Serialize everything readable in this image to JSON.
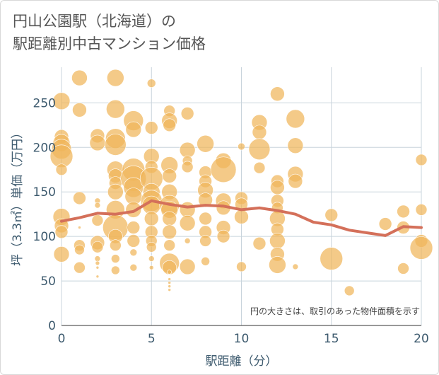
{
  "title_line1": "円山公園駅（北海道）の",
  "title_line2": "駅距離別中古マンション価格",
  "annotation": "円の大きさは、取引のあった物件面積を示す",
  "colors": {
    "bubble": "#f0b55a",
    "line": "#d4705a",
    "grid": "#c8d4dc",
    "axis_text": "#3d5a6e",
    "plot_bg": "#ffffff"
  },
  "chart_data": {
    "type": "scatter",
    "title": "円山公園駅（北海道）の駅距離別中古マンション価格",
    "xlabel": "駅距離（分）",
    "ylabel": "坪（3.3㎡）単価（万円）",
    "xlim": [
      0,
      20
    ],
    "ylim": [
      0,
      290
    ],
    "xticks": [
      0,
      5,
      10,
      15,
      20
    ],
    "yticks": [
      0,
      50,
      100,
      150,
      200,
      250
    ],
    "grid": true,
    "bubbles": [
      {
        "x": 0,
        "y": 252,
        "s": 12
      },
      {
        "x": 0,
        "y": 212,
        "s": 10
      },
      {
        "x": 0,
        "y": 205,
        "s": 12
      },
      {
        "x": 0,
        "y": 198,
        "s": 14
      },
      {
        "x": 0,
        "y": 190,
        "s": 16
      },
      {
        "x": 0,
        "y": 175,
        "s": 8
      },
      {
        "x": 0,
        "y": 122,
        "s": 12
      },
      {
        "x": 0,
        "y": 112,
        "s": 10
      },
      {
        "x": 0,
        "y": 105,
        "s": 9
      },
      {
        "x": 0,
        "y": 80,
        "s": 11
      },
      {
        "x": 1,
        "y": 278,
        "s": 11
      },
      {
        "x": 1,
        "y": 242,
        "s": 10
      },
      {
        "x": 1,
        "y": 143,
        "s": 9
      },
      {
        "x": 1,
        "y": 110,
        "s": 2
      },
      {
        "x": 1,
        "y": 90,
        "s": 8
      },
      {
        "x": 1,
        "y": 85,
        "s": 7
      },
      {
        "x": 1,
        "y": 65,
        "s": 8
      },
      {
        "x": 2,
        "y": 213,
        "s": 10
      },
      {
        "x": 2,
        "y": 205,
        "s": 11
      },
      {
        "x": 2,
        "y": 140,
        "s": 4
      },
      {
        "x": 2,
        "y": 135,
        "s": 4
      },
      {
        "x": 2,
        "y": 118,
        "s": 8
      },
      {
        "x": 2,
        "y": 93,
        "s": 10
      },
      {
        "x": 2,
        "y": 88,
        "s": 8
      },
      {
        "x": 2,
        "y": 75,
        "s": 4
      },
      {
        "x": 2,
        "y": 70,
        "s": 3
      },
      {
        "x": 2,
        "y": 65,
        "s": 2
      },
      {
        "x": 2,
        "y": 55,
        "s": 2
      },
      {
        "x": 3,
        "y": 278,
        "s": 12
      },
      {
        "x": 3,
        "y": 243,
        "s": 13
      },
      {
        "x": 3,
        "y": 210,
        "s": 14
      },
      {
        "x": 3,
        "y": 203,
        "s": 15
      },
      {
        "x": 3,
        "y": 175,
        "s": 12
      },
      {
        "x": 3,
        "y": 168,
        "s": 10
      },
      {
        "x": 3,
        "y": 160,
        "s": 9
      },
      {
        "x": 3,
        "y": 150,
        "s": 11
      },
      {
        "x": 3,
        "y": 130,
        "s": 13
      },
      {
        "x": 3,
        "y": 110,
        "s": 18
      },
      {
        "x": 3,
        "y": 100,
        "s": 10
      },
      {
        "x": 3,
        "y": 90,
        "s": 8
      },
      {
        "x": 3,
        "y": 75,
        "s": 6
      },
      {
        "x": 3,
        "y": 62,
        "s": 6
      },
      {
        "x": 4,
        "y": 230,
        "s": 14
      },
      {
        "x": 4,
        "y": 220,
        "s": 11
      },
      {
        "x": 4,
        "y": 175,
        "s": 16
      },
      {
        "x": 4,
        "y": 165,
        "s": 18
      },
      {
        "x": 4,
        "y": 155,
        "s": 14
      },
      {
        "x": 4,
        "y": 145,
        "s": 12
      },
      {
        "x": 4,
        "y": 130,
        "s": 11
      },
      {
        "x": 4,
        "y": 110,
        "s": 9
      },
      {
        "x": 4,
        "y": 95,
        "s": 9
      },
      {
        "x": 4,
        "y": 82,
        "s": 5
      },
      {
        "x": 4,
        "y": 65,
        "s": 5
      },
      {
        "x": 5,
        "y": 272,
        "s": 6
      },
      {
        "x": 5,
        "y": 222,
        "s": 9
      },
      {
        "x": 5,
        "y": 190,
        "s": 11
      },
      {
        "x": 5,
        "y": 178,
        "s": 9
      },
      {
        "x": 5,
        "y": 165,
        "s": 16
      },
      {
        "x": 5,
        "y": 150,
        "s": 12
      },
      {
        "x": 5,
        "y": 140,
        "s": 15
      },
      {
        "x": 5,
        "y": 135,
        "s": 13
      },
      {
        "x": 5,
        "y": 120,
        "s": 10
      },
      {
        "x": 5,
        "y": 105,
        "s": 9
      },
      {
        "x": 5,
        "y": 95,
        "s": 8
      },
      {
        "x": 5,
        "y": 88,
        "s": 7
      },
      {
        "x": 5,
        "y": 75,
        "s": 4
      },
      {
        "x": 5,
        "y": 65,
        "s": 3
      },
      {
        "x": 6,
        "y": 241,
        "s": 8
      },
      {
        "x": 6,
        "y": 230,
        "s": 11
      },
      {
        "x": 6,
        "y": 225,
        "s": 9
      },
      {
        "x": 6,
        "y": 180,
        "s": 12
      },
      {
        "x": 6,
        "y": 168,
        "s": 10
      },
      {
        "x": 6,
        "y": 150,
        "s": 11
      },
      {
        "x": 6,
        "y": 135,
        "s": 14
      },
      {
        "x": 6,
        "y": 130,
        "s": 12
      },
      {
        "x": 6,
        "y": 120,
        "s": 10
      },
      {
        "x": 6,
        "y": 105,
        "s": 10
      },
      {
        "x": 6,
        "y": 90,
        "s": 8
      },
      {
        "x": 6,
        "y": 70,
        "s": 14
      },
      {
        "x": 6,
        "y": 65,
        "s": 10
      },
      {
        "x": 6,
        "y": 60,
        "s": 3
      },
      {
        "x": 6,
        "y": 52,
        "s": 2
      },
      {
        "x": 6,
        "y": 48,
        "s": 2
      },
      {
        "x": 6,
        "y": 44,
        "s": 2
      },
      {
        "x": 6,
        "y": 40,
        "s": 2
      },
      {
        "x": 7,
        "y": 238,
        "s": 9
      },
      {
        "x": 7,
        "y": 197,
        "s": 11
      },
      {
        "x": 7,
        "y": 185,
        "s": 7
      },
      {
        "x": 7,
        "y": 178,
        "s": 8
      },
      {
        "x": 7,
        "y": 130,
        "s": 11
      },
      {
        "x": 7,
        "y": 115,
        "s": 11
      },
      {
        "x": 7,
        "y": 95,
        "s": 4
      },
      {
        "x": 7,
        "y": 66,
        "s": 11
      },
      {
        "x": 8,
        "y": 204,
        "s": 12
      },
      {
        "x": 8,
        "y": 172,
        "s": 9
      },
      {
        "x": 8,
        "y": 162,
        "s": 9
      },
      {
        "x": 8,
        "y": 152,
        "s": 11
      },
      {
        "x": 8,
        "y": 141,
        "s": 10
      },
      {
        "x": 8,
        "y": 120,
        "s": 9
      },
      {
        "x": 8,
        "y": 105,
        "s": 9
      },
      {
        "x": 8,
        "y": 95,
        "s": 8
      },
      {
        "x": 8,
        "y": 72,
        "s": 6
      },
      {
        "x": 9,
        "y": 185,
        "s": 11
      },
      {
        "x": 9,
        "y": 175,
        "s": 18
      },
      {
        "x": 9,
        "y": 140,
        "s": 11
      },
      {
        "x": 9,
        "y": 132,
        "s": 10
      },
      {
        "x": 9,
        "y": 110,
        "s": 10
      },
      {
        "x": 9,
        "y": 100,
        "s": 9
      },
      {
        "x": 10,
        "y": 201,
        "s": 5
      },
      {
        "x": 10,
        "y": 143,
        "s": 9
      },
      {
        "x": 10,
        "y": 136,
        "s": 9
      },
      {
        "x": 10,
        "y": 122,
        "s": 10
      },
      {
        "x": 10,
        "y": 66,
        "s": 7
      },
      {
        "x": 11,
        "y": 228,
        "s": 11
      },
      {
        "x": 11,
        "y": 217,
        "s": 10
      },
      {
        "x": 11,
        "y": 198,
        "s": 15
      },
      {
        "x": 11,
        "y": 177,
        "s": 8
      },
      {
        "x": 11,
        "y": 92,
        "s": 9
      },
      {
        "x": 12,
        "y": 260,
        "s": 10
      },
      {
        "x": 12,
        "y": 162,
        "s": 9
      },
      {
        "x": 12,
        "y": 155,
        "s": 10
      },
      {
        "x": 12,
        "y": 140,
        "s": 9
      },
      {
        "x": 12,
        "y": 132,
        "s": 8
      },
      {
        "x": 12,
        "y": 120,
        "s": 11
      },
      {
        "x": 12,
        "y": 108,
        "s": 9
      },
      {
        "x": 12,
        "y": 95,
        "s": 11
      },
      {
        "x": 12,
        "y": 80,
        "s": 10
      },
      {
        "x": 12,
        "y": 68,
        "s": 12
      },
      {
        "x": 13,
        "y": 232,
        "s": 13
      },
      {
        "x": 13,
        "y": 202,
        "s": 11
      },
      {
        "x": 13,
        "y": 170,
        "s": 11
      },
      {
        "x": 13,
        "y": 162,
        "s": 10
      },
      {
        "x": 13,
        "y": 66,
        "s": 4
      },
      {
        "x": 15,
        "y": 124,
        "s": 9
      },
      {
        "x": 15,
        "y": 75,
        "s": 16
      },
      {
        "x": 16,
        "y": 39,
        "s": 7
      },
      {
        "x": 18,
        "y": 114,
        "s": 9
      },
      {
        "x": 19,
        "y": 128,
        "s": 9
      },
      {
        "x": 19,
        "y": 110,
        "s": 9
      },
      {
        "x": 19,
        "y": 64,
        "s": 8
      },
      {
        "x": 20,
        "y": 186,
        "s": 8
      },
      {
        "x": 20,
        "y": 130,
        "s": 8
      },
      {
        "x": 20,
        "y": 95,
        "s": 9
      },
      {
        "x": 20,
        "y": 87,
        "s": 16
      }
    ],
    "average_line": {
      "x": [
        0,
        1,
        2,
        3,
        4,
        5,
        6,
        7,
        8,
        9,
        10,
        11,
        12,
        13,
        14,
        15,
        16,
        17,
        18,
        19,
        20
      ],
      "y": [
        117,
        121,
        126,
        125,
        128,
        140,
        136,
        133,
        135,
        134,
        130,
        132,
        129,
        125,
        116,
        113,
        107,
        104,
        101,
        111,
        110
      ]
    }
  }
}
